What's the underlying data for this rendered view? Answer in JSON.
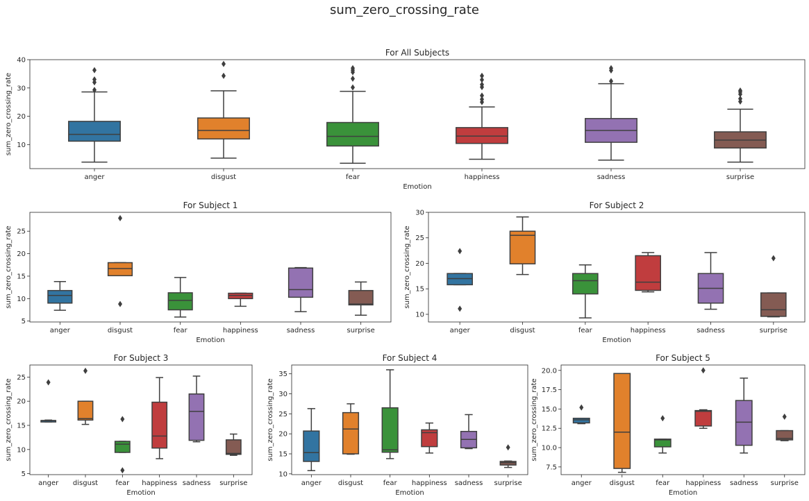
{
  "figure": {
    "title": "sum_zero_crossing_rate"
  },
  "palette": {
    "anger": "#3274a1",
    "disgust": "#e1812c",
    "fear": "#3a923a",
    "happiness": "#c03d3e",
    "sadness": "#9372b2",
    "surprise": "#845b53"
  },
  "chart_data": [
    {
      "type": "box",
      "title": "For All Subjects",
      "xlabel": "Emotion",
      "ylabel": "sum_zero_crossing_rate",
      "ylim": [
        1.5,
        40
      ],
      "yticks": [
        10,
        20,
        30,
        40
      ],
      "ytick_labels": [
        "10",
        "20",
        "30",
        "40"
      ],
      "categories": [
        "anger",
        "disgust",
        "fear",
        "happiness",
        "sadness",
        "surprise"
      ],
      "boxes": [
        {
          "q1": 11.2,
          "median": 13.6,
          "q3": 18.2,
          "whislo": 3.8,
          "whishi": 28.6,
          "fliers": [
            29.3,
            32.0,
            33.0,
            36.3
          ]
        },
        {
          "q1": 12.0,
          "median": 15.0,
          "q3": 19.4,
          "whislo": 5.2,
          "whishi": 29.0,
          "fliers": [
            34.3,
            38.5
          ]
        },
        {
          "q1": 9.5,
          "median": 12.9,
          "q3": 17.8,
          "whislo": 3.4,
          "whishi": 28.8,
          "fliers": [
            30.2,
            33.3,
            35.6,
            36.3,
            37.0
          ]
        },
        {
          "q1": 10.4,
          "median": 13.0,
          "q3": 16.0,
          "whislo": 4.8,
          "whishi": 23.3,
          "fliers": [
            25.0,
            26.0,
            27.3,
            30.3,
            31.2,
            32.9,
            34.3
          ]
        },
        {
          "q1": 10.8,
          "median": 15.0,
          "q3": 19.2,
          "whislo": 4.5,
          "whishi": 31.5,
          "fliers": [
            32.4,
            36.2,
            37.0
          ]
        },
        {
          "q1": 8.8,
          "median": 11.6,
          "q3": 14.5,
          "whislo": 3.8,
          "whishi": 22.5,
          "fliers": [
            25.2,
            26.2,
            27.8,
            28.6,
            29.1
          ]
        }
      ]
    },
    {
      "type": "box",
      "title": "For Subject 1",
      "xlabel": "Emotion",
      "ylabel": "sum_zero_crossing_rate",
      "ylim": [
        4.8,
        29.2
      ],
      "yticks": [
        5,
        10,
        15,
        20,
        25
      ],
      "ytick_labels": [
        "5",
        "10",
        "15",
        "20",
        "25"
      ],
      "categories": [
        "anger",
        "disgust",
        "fear",
        "happiness",
        "sadness",
        "surprise"
      ],
      "boxes": [
        {
          "q1": 9.0,
          "median": 10.7,
          "q3": 11.8,
          "whislo": 7.4,
          "whishi": 13.8,
          "fliers": []
        },
        {
          "q1": 15.1,
          "median": 16.7,
          "q3": 18.0,
          "whislo": 15.1,
          "whishi": 18.0,
          "fliers": [
            8.8,
            27.9
          ]
        },
        {
          "q1": 7.5,
          "median": 9.6,
          "q3": 11.3,
          "whislo": 5.9,
          "whishi": 14.7,
          "fliers": []
        },
        {
          "q1": 10.0,
          "median": 10.7,
          "q3": 11.2,
          "whislo": 8.3,
          "whishi": 11.2,
          "fliers": []
        },
        {
          "q1": 10.3,
          "median": 12.0,
          "q3": 16.8,
          "whislo": 7.1,
          "whishi": 16.9,
          "fliers": []
        },
        {
          "q1": 8.6,
          "median": 8.8,
          "q3": 11.8,
          "whislo": 6.3,
          "whishi": 13.7,
          "fliers": []
        }
      ]
    },
    {
      "type": "box",
      "title": "For Subject 2",
      "xlabel": "Emotion",
      "ylabel": "sum_zero_crossing_rate",
      "ylim": [
        8.5,
        30
      ],
      "yticks": [
        10,
        15,
        20,
        25,
        30
      ],
      "ytick_labels": [
        "10",
        "15",
        "20",
        "25",
        "30"
      ],
      "categories": [
        "anger",
        "disgust",
        "fear",
        "happiness",
        "sadness",
        "surprise"
      ],
      "boxes": [
        {
          "q1": 15.8,
          "median": 17.0,
          "q3": 18.0,
          "whislo": 15.8,
          "whishi": 18.0,
          "fliers": [
            11.1,
            22.4
          ]
        },
        {
          "q1": 19.9,
          "median": 25.5,
          "q3": 26.3,
          "whislo": 17.8,
          "whishi": 29.1,
          "fliers": []
        },
        {
          "q1": 14.0,
          "median": 16.6,
          "q3": 18.0,
          "whislo": 9.3,
          "whishi": 19.7,
          "fliers": []
        },
        {
          "q1": 14.7,
          "median": 16.3,
          "q3": 21.5,
          "whislo": 14.4,
          "whishi": 22.1,
          "fliers": []
        },
        {
          "q1": 12.2,
          "median": 15.1,
          "q3": 18.0,
          "whislo": 11.0,
          "whishi": 22.1,
          "fliers": []
        },
        {
          "q1": 9.6,
          "median": 10.9,
          "q3": 14.2,
          "whislo": 9.5,
          "whishi": 14.2,
          "fliers": [
            21.0
          ]
        }
      ]
    },
    {
      "type": "box",
      "title": "For Subject 3",
      "xlabel": "Emotion",
      "ylabel": "sum_zero_crossing_rate",
      "ylim": [
        4.8,
        27.5
      ],
      "yticks": [
        5,
        10,
        15,
        20,
        25
      ],
      "ytick_labels": [
        "5",
        "10",
        "15",
        "20",
        "25"
      ],
      "categories": [
        "anger",
        "disgust",
        "fear",
        "happiness",
        "sadness",
        "surprise"
      ],
      "boxes": [
        {
          "q1": 15.7,
          "median": 16.0,
          "q3": 16.0,
          "whislo": 15.7,
          "whishi": 16.1,
          "fliers": [
            23.9
          ]
        },
        {
          "q1": 16.1,
          "median": 16.4,
          "q3": 20.0,
          "whislo": 15.2,
          "whishi": 20.0,
          "fliers": [
            26.3
          ]
        },
        {
          "q1": 9.4,
          "median": 11.1,
          "q3": 11.7,
          "whislo": 9.4,
          "whishi": 11.7,
          "fliers": [
            5.7,
            16.3
          ]
        },
        {
          "q1": 10.3,
          "median": 12.8,
          "q3": 19.8,
          "whislo": 8.1,
          "whishi": 24.9,
          "fliers": []
        },
        {
          "q1": 11.9,
          "median": 17.9,
          "q3": 21.5,
          "whislo": 11.6,
          "whishi": 25.2,
          "fliers": []
        },
        {
          "q1": 9.0,
          "median": 9.2,
          "q3": 12.0,
          "whislo": 8.8,
          "whishi": 13.2,
          "fliers": []
        }
      ]
    },
    {
      "type": "box",
      "title": "For Subject 4",
      "xlabel": "Emotion",
      "ylabel": "sum_zero_crossing_rate",
      "ylim": [
        9.8,
        37.2
      ],
      "yticks": [
        10,
        15,
        20,
        25,
        30,
        35
      ],
      "ytick_labels": [
        "10",
        "15",
        "20",
        "25",
        "30",
        "35"
      ],
      "categories": [
        "anger",
        "disgust",
        "fear",
        "happiness",
        "sadness",
        "surprise"
      ],
      "boxes": [
        {
          "q1": 13.1,
          "median": 15.3,
          "q3": 20.7,
          "whislo": 10.8,
          "whishi": 26.3,
          "fliers": []
        },
        {
          "q1": 15.0,
          "median": 21.2,
          "q3": 25.3,
          "whislo": 14.9,
          "whishi": 27.5,
          "fliers": []
        },
        {
          "q1": 15.4,
          "median": 16.0,
          "q3": 26.5,
          "whislo": 13.8,
          "whishi": 36.0,
          "fliers": []
        },
        {
          "q1": 16.8,
          "median": 20.3,
          "q3": 21.0,
          "whislo": 15.2,
          "whishi": 22.7,
          "fliers": []
        },
        {
          "q1": 16.5,
          "median": 18.6,
          "q3": 20.6,
          "whislo": 16.3,
          "whishi": 24.8,
          "fliers": []
        },
        {
          "q1": 12.2,
          "median": 12.8,
          "q3": 13.1,
          "whislo": 11.6,
          "whishi": 13.2,
          "fliers": [
            16.6
          ]
        }
      ]
    },
    {
      "type": "box",
      "title": "For Subject 5",
      "xlabel": "Emotion",
      "ylabel": "sum_zero_crossing_rate",
      "ylim": [
        6.5,
        20.7
      ],
      "yticks": [
        7.5,
        10.0,
        12.5,
        15.0,
        17.5,
        20.0
      ],
      "ytick_labels": [
        "7.5",
        "10.0",
        "12.5",
        "15.0",
        "17.5",
        "20.0"
      ],
      "categories": [
        "anger",
        "disgust",
        "fear",
        "happiness",
        "sadness",
        "surprise"
      ],
      "boxes": [
        {
          "q1": 13.2,
          "median": 13.6,
          "q3": 13.8,
          "whislo": 13.1,
          "whishi": 13.8,
          "fliers": [
            15.2
          ]
        },
        {
          "q1": 7.3,
          "median": 12.0,
          "q3": 19.6,
          "whislo": 6.8,
          "whishi": 19.6,
          "fliers": []
        },
        {
          "q1": 10.1,
          "median": 11.0,
          "q3": 11.1,
          "whislo": 9.3,
          "whishi": 11.1,
          "fliers": [
            13.8
          ]
        },
        {
          "q1": 12.8,
          "median": 14.7,
          "q3": 14.8,
          "whislo": 12.5,
          "whishi": 14.9,
          "fliers": [
            20.0
          ]
        },
        {
          "q1": 10.3,
          "median": 13.3,
          "q3": 16.1,
          "whislo": 9.3,
          "whishi": 19.0,
          "fliers": []
        },
        {
          "q1": 11.0,
          "median": 11.2,
          "q3": 12.2,
          "whislo": 10.9,
          "whishi": 12.2,
          "fliers": [
            14.0
          ]
        }
      ]
    }
  ]
}
